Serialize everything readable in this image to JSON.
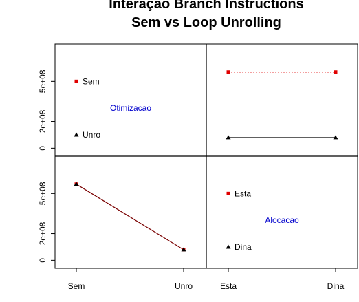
{
  "chart_data": {
    "type": "scatter",
    "title_lines": [
      "Interação Branch Instructions",
      "Sem vs Loop Unrolling"
    ],
    "colors": {
      "sem": "#e00000",
      "unro": "#000000",
      "label": "#0000cc",
      "axis": "#000000"
    },
    "factors": {
      "otimizacao": {
        "name": "Otimizacao",
        "levels": [
          "Sem",
          "Unro"
        ]
      },
      "alocacao": {
        "name": "Alocacao",
        "levels": [
          "Esta",
          "Dina"
        ]
      }
    },
    "y_ticks": [
      {
        "value": 0,
        "label": "0"
      },
      {
        "value": 200000000,
        "label": "2e+08"
      },
      {
        "value": 500000000,
        "label": "5e+08"
      }
    ],
    "ylim": [
      -60000000,
      780000000
    ],
    "legend_y": {
      "sem": 500000000,
      "unro": 100000000
    },
    "factor_label_y": 300000000,
    "series": [
      {
        "name": "Sem",
        "points": [
          {
            "alocacao": "Esta",
            "otimizacao": "Sem",
            "y": 570000000
          },
          {
            "alocacao": "Dina",
            "otimizacao": "Sem",
            "y": 570000000
          }
        ]
      },
      {
        "name": "Unro",
        "points": [
          {
            "alocacao": "Esta",
            "otimizacao": "Unro",
            "y": 80000000
          },
          {
            "alocacao": "Dina",
            "otimizacao": "Unro",
            "y": 80000000
          }
        ]
      }
    ],
    "by_otimizacao": [
      {
        "level": "Sem",
        "y": 570000000
      },
      {
        "level": "Unro",
        "y": 80000000
      }
    ],
    "grid": false
  }
}
